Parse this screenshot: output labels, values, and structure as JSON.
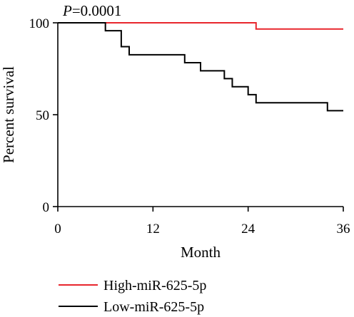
{
  "chart_data": {
    "type": "line",
    "step": true,
    "annotation": {
      "label": "P",
      "value": "=0.0001"
    },
    "xlabel": "Month",
    "ylabel": "Percent survival",
    "xlim": [
      0,
      36
    ],
    "ylim": [
      0,
      100
    ],
    "xticks": [
      0,
      12,
      24,
      36
    ],
    "yticks": [
      0,
      50,
      100
    ],
    "xtick_labels": [
      "0",
      "12",
      "24",
      "36"
    ],
    "ytick_labels": [
      "0",
      "50",
      "100"
    ],
    "grid": false,
    "legend_position": "bottom-left",
    "series": [
      {
        "name": "High-miR-625-5p",
        "color": "#e8262d",
        "x": [
          0,
          25,
          36
        ],
        "y": [
          100,
          96.6,
          96.6
        ]
      },
      {
        "name": "Low-miR-625-5p",
        "color": "#000000",
        "x": [
          0,
          6,
          8,
          9,
          16,
          18,
          21,
          22,
          24,
          25,
          34,
          36
        ],
        "y": [
          100,
          95.7,
          87.0,
          82.6,
          78.3,
          73.9,
          69.6,
          65.2,
          60.9,
          56.5,
          52.2,
          52.2
        ]
      }
    ]
  }
}
